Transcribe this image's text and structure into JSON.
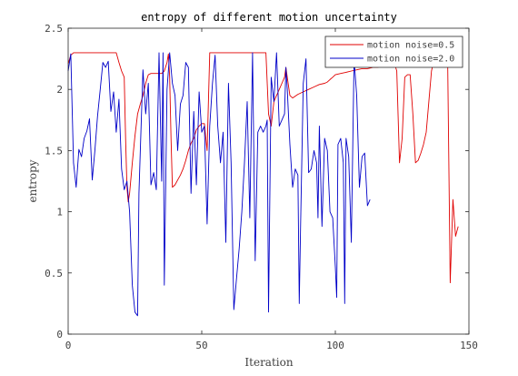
{
  "chart_data": {
    "type": "line",
    "title": "entropy of different motion uncertainty",
    "xlabel": "Iteration",
    "ylabel": "entropy",
    "xlim": [
      0,
      150
    ],
    "ylim": [
      0,
      2.5
    ],
    "xticks": [
      0,
      50,
      100,
      150
    ],
    "yticks": [
      0,
      0.5,
      1,
      1.5,
      2,
      2.5
    ],
    "xtick_labels": [
      "0",
      "50",
      "100",
      "150"
    ],
    "ytick_labels": [
      "0",
      "0.5",
      "1",
      "1.5",
      "2",
      "2.5"
    ],
    "grid": false,
    "legend_position": "top-right",
    "series": [
      {
        "name": "motion noise=0.5",
        "color": "#e00000",
        "points": [
          [
            0,
            2.21
          ],
          [
            1,
            2.28
          ],
          [
            2,
            2.3
          ],
          [
            10,
            2.3
          ],
          [
            18,
            2.3
          ],
          [
            19,
            2.22
          ],
          [
            20,
            2.15
          ],
          [
            21,
            2.1
          ],
          [
            21.5,
            1.6
          ],
          [
            22,
            1.2
          ],
          [
            22.5,
            1.08
          ],
          [
            23,
            1.15
          ],
          [
            24,
            1.4
          ],
          [
            25,
            1.62
          ],
          [
            26,
            1.8
          ],
          [
            27,
            1.88
          ],
          [
            28,
            1.95
          ],
          [
            29,
            2.05
          ],
          [
            30,
            2.12
          ],
          [
            31,
            2.13
          ],
          [
            35,
            2.13
          ],
          [
            36,
            2.15
          ],
          [
            37,
            2.22
          ],
          [
            37.5,
            2.29
          ],
          [
            38,
            2.1
          ],
          [
            38.5,
            1.6
          ],
          [
            39,
            1.2
          ],
          [
            40,
            1.22
          ],
          [
            41,
            1.26
          ],
          [
            42,
            1.3
          ],
          [
            43,
            1.35
          ],
          [
            44,
            1.42
          ],
          [
            45,
            1.5
          ],
          [
            46,
            1.56
          ],
          [
            47,
            1.6
          ],
          [
            48,
            1.67
          ],
          [
            49,
            1.7
          ],
          [
            50,
            1.72
          ],
          [
            51,
            1.72
          ],
          [
            52,
            1.5
          ],
          [
            53,
            2.3
          ],
          [
            55,
            2.3
          ],
          [
            74,
            2.3
          ],
          [
            75,
            1.8
          ],
          [
            76,
            1.7
          ],
          [
            77,
            1.9
          ],
          [
            78,
            1.95
          ],
          [
            79,
            2.0
          ],
          [
            80,
            2.05
          ],
          [
            81,
            2.1
          ],
          [
            81.5,
            2.18
          ],
          [
            82,
            2.1
          ],
          [
            83,
            1.95
          ],
          [
            84,
            1.93
          ],
          [
            86,
            1.96
          ],
          [
            88,
            1.98
          ],
          [
            90,
            2.0
          ],
          [
            92,
            2.02
          ],
          [
            94,
            2.04
          ],
          [
            96,
            2.05
          ],
          [
            97,
            2.06
          ],
          [
            98,
            2.08
          ],
          [
            99,
            2.1
          ],
          [
            100,
            2.12
          ],
          [
            102,
            2.13
          ],
          [
            104,
            2.14
          ],
          [
            106,
            2.15
          ],
          [
            108,
            2.16
          ],
          [
            110,
            2.17
          ],
          [
            112,
            2.17
          ],
          [
            114,
            2.18
          ],
          [
            116,
            2.18
          ],
          [
            118,
            2.2
          ],
          [
            120,
            2.2
          ],
          [
            122,
            2.22
          ],
          [
            123,
            2.15
          ],
          [
            124,
            1.4
          ],
          [
            125,
            1.6
          ],
          [
            126,
            2.1
          ],
          [
            127,
            2.12
          ],
          [
            128,
            2.12
          ],
          [
            129,
            1.8
          ],
          [
            130,
            1.4
          ],
          [
            131,
            1.42
          ],
          [
            132,
            1.48
          ],
          [
            133,
            1.55
          ],
          [
            134,
            1.65
          ],
          [
            135,
            1.9
          ],
          [
            136,
            2.15
          ],
          [
            137,
            2.25
          ],
          [
            138,
            2.3
          ],
          [
            142,
            2.3
          ],
          [
            143,
            0.42
          ],
          [
            144,
            1.1
          ],
          [
            145,
            0.8
          ],
          [
            146,
            0.88
          ]
        ]
      },
      {
        "name": "motion noise=2.0",
        "color": "#0000c8",
        "points": [
          [
            0,
            2.15
          ],
          [
            1,
            2.29
          ],
          [
            2,
            1.4
          ],
          [
            3,
            1.2
          ],
          [
            4,
            1.51
          ],
          [
            5,
            1.45
          ],
          [
            6,
            1.6
          ],
          [
            7,
            1.66
          ],
          [
            8,
            1.76
          ],
          [
            9,
            1.26
          ],
          [
            10,
            1.5
          ],
          [
            11,
            1.78
          ],
          [
            12,
            2.0
          ],
          [
            13,
            2.22
          ],
          [
            14,
            2.18
          ],
          [
            15,
            2.23
          ],
          [
            16,
            1.82
          ],
          [
            17,
            1.98
          ],
          [
            18,
            1.65
          ],
          [
            19,
            1.92
          ],
          [
            20,
            1.35
          ],
          [
            21,
            1.18
          ],
          [
            22,
            1.25
          ],
          [
            23,
            1.0
          ],
          [
            24,
            0.4
          ],
          [
            25,
            0.18
          ],
          [
            26,
            0.15
          ],
          [
            26.5,
            1.15
          ],
          [
            27,
            1.5
          ],
          [
            28,
            2.16
          ],
          [
            29,
            1.8
          ],
          [
            30,
            2.05
          ],
          [
            31,
            1.22
          ],
          [
            32,
            1.32
          ],
          [
            33,
            1.18
          ],
          [
            34,
            2.3
          ],
          [
            35,
            1.25
          ],
          [
            35.5,
            2.3
          ],
          [
            36,
            0.4
          ],
          [
            37,
            2.0
          ],
          [
            38,
            2.3
          ],
          [
            39,
            2.05
          ],
          [
            40,
            1.95
          ],
          [
            41,
            1.5
          ],
          [
            42,
            1.88
          ],
          [
            43,
            1.95
          ],
          [
            44,
            2.22
          ],
          [
            45,
            2.18
          ],
          [
            46,
            1.15
          ],
          [
            47,
            1.82
          ],
          [
            48,
            1.22
          ],
          [
            49,
            1.98
          ],
          [
            50,
            1.65
          ],
          [
            51,
            1.7
          ],
          [
            52,
            0.9
          ],
          [
            53,
            1.7
          ],
          [
            54,
            2.05
          ],
          [
            55,
            2.28
          ],
          [
            56,
            1.7
          ],
          [
            57,
            1.4
          ],
          [
            58,
            1.65
          ],
          [
            59,
            0.75
          ],
          [
            60,
            2.05
          ],
          [
            61,
            1.4
          ],
          [
            62,
            0.2
          ],
          [
            63,
            0.45
          ],
          [
            64,
            0.7
          ],
          [
            65,
            1.0
          ],
          [
            66,
            1.4
          ],
          [
            67,
            1.9
          ],
          [
            68,
            0.95
          ],
          [
            69,
            2.3
          ],
          [
            70,
            0.6
          ],
          [
            71,
            1.65
          ],
          [
            72,
            1.7
          ],
          [
            73,
            1.65
          ],
          [
            74,
            1.7
          ],
          [
            74.5,
            1.75
          ],
          [
            75,
            0.18
          ],
          [
            76,
            2.1
          ],
          [
            77,
            1.9
          ],
          [
            78,
            2.3
          ],
          [
            79,
            1.7
          ],
          [
            80,
            1.75
          ],
          [
            81,
            1.8
          ],
          [
            81.5,
            2.18
          ],
          [
            82,
            2.0
          ],
          [
            83,
            1.55
          ],
          [
            84,
            1.2
          ],
          [
            85,
            1.35
          ],
          [
            86,
            1.3
          ],
          [
            86.5,
            0.25
          ],
          [
            87,
            0.9
          ],
          [
            88,
            2.05
          ],
          [
            89,
            2.25
          ],
          [
            90,
            1.32
          ],
          [
            91,
            1.35
          ],
          [
            92,
            1.5
          ],
          [
            93,
            1.4
          ],
          [
            93.5,
            0.95
          ],
          [
            94,
            1.7
          ],
          [
            95,
            0.88
          ],
          [
            96,
            1.6
          ],
          [
            97,
            1.5
          ],
          [
            98,
            1.0
          ],
          [
            99,
            0.95
          ],
          [
            100,
            0.55
          ],
          [
            100.5,
            0.3
          ],
          [
            101,
            1.55
          ],
          [
            102,
            1.6
          ],
          [
            103,
            1.4
          ],
          [
            103.5,
            0.25
          ],
          [
            104,
            1.6
          ],
          [
            105,
            1.45
          ],
          [
            106,
            0.75
          ],
          [
            107,
            2.25
          ],
          [
            108,
            1.95
          ],
          [
            109,
            1.2
          ],
          [
            110,
            1.45
          ],
          [
            111,
            1.48
          ],
          [
            112,
            1.05
          ],
          [
            113,
            1.1
          ]
        ]
      }
    ]
  }
}
